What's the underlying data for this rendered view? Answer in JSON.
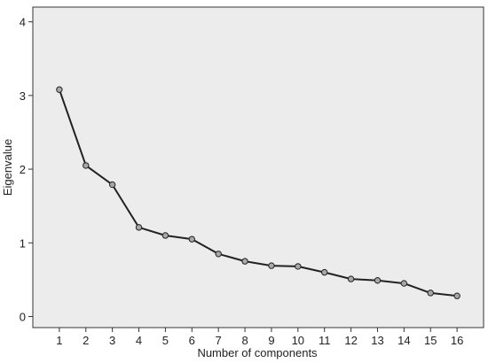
{
  "chart_data": {
    "type": "line",
    "title": "",
    "xlabel": "Number of components",
    "ylabel": "Eigenvalue",
    "x": [
      1,
      2,
      3,
      4,
      5,
      6,
      7,
      8,
      9,
      10,
      11,
      12,
      13,
      14,
      15,
      16
    ],
    "values": [
      3.08,
      2.05,
      1.79,
      1.21,
      1.1,
      1.05,
      0.85,
      0.75,
      0.69,
      0.68,
      0.6,
      0.51,
      0.49,
      0.45,
      0.32,
      0.28
    ],
    "x_ticks": [
      "1",
      "2",
      "3",
      "4",
      "5",
      "6",
      "7",
      "8",
      "9",
      "10",
      "11",
      "12",
      "13",
      "14",
      "15",
      "16"
    ],
    "y_ticks": [
      "0",
      "1",
      "2",
      "3",
      "4"
    ],
    "xlim": [
      0,
      17
    ],
    "ylim": [
      -0.15,
      4.2
    ],
    "grid": false,
    "legend": "none",
    "colors": {
      "plot_background": "#ececec",
      "line": "#222222",
      "marker_fill": "#a8a8a8",
      "frame": "#333333"
    }
  }
}
